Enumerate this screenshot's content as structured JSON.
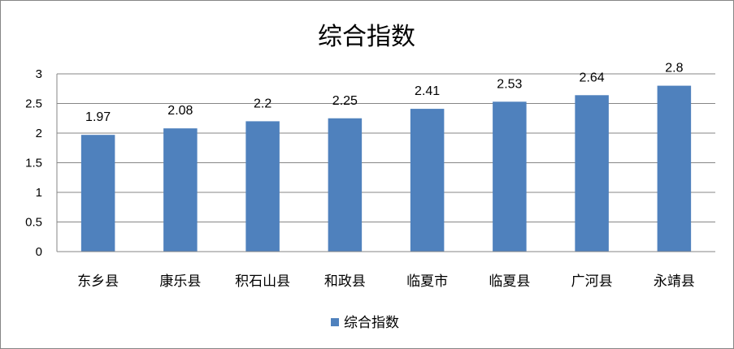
{
  "chart_data": {
    "type": "bar",
    "title": "综合指数",
    "categories": [
      "东乡县",
      "康乐县",
      "积石山县",
      "和政县",
      "临夏市",
      "临夏县",
      "广河县",
      "永靖县"
    ],
    "series": [
      {
        "name": "综合指数",
        "values": [
          1.97,
          2.08,
          2.2,
          2.25,
          2.41,
          2.53,
          2.64,
          2.8
        ],
        "labels": [
          "1.97",
          "2.08",
          "2.2",
          "2.25",
          "2.41",
          "2.53",
          "2.64",
          "2.8"
        ],
        "color": "#4F81BD"
      }
    ],
    "y_ticks": [
      "0",
      "0.5",
      "1",
      "1.5",
      "2",
      "2.5",
      "3"
    ],
    "ylim": [
      0,
      3
    ],
    "xlabel": "",
    "ylabel": "",
    "grid": true,
    "legend_position": "bottom"
  }
}
